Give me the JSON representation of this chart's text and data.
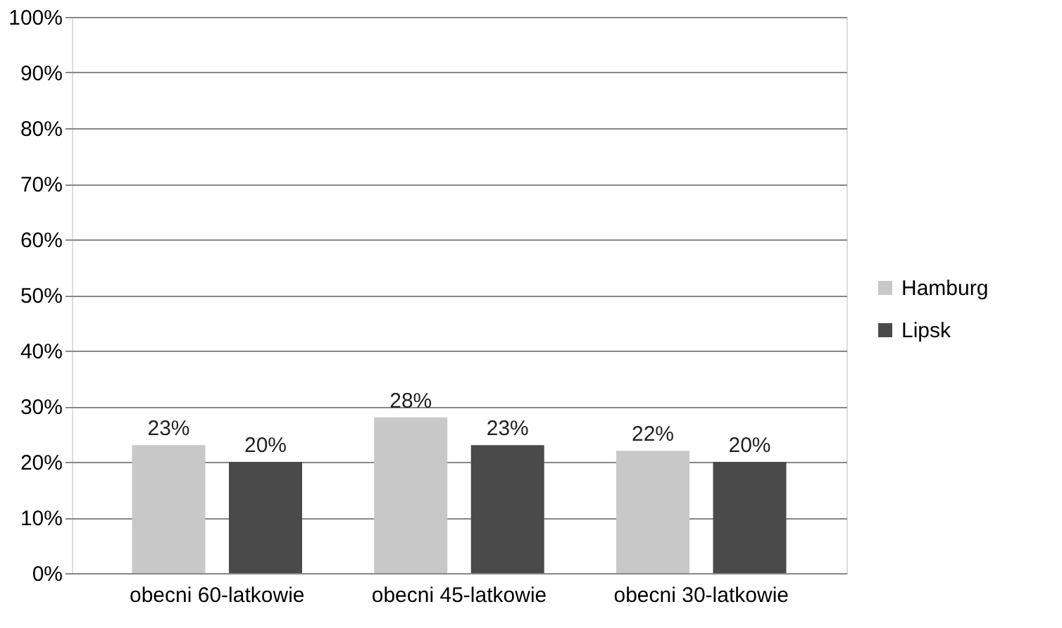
{
  "chart_data": {
    "type": "bar",
    "categories": [
      "obecni 60-latkowie",
      "obecni 45-latkowie",
      "obecni 30-latkowie"
    ],
    "series": [
      {
        "name": "Hamburg",
        "color": "#c8c8c8",
        "values": [
          23,
          28,
          22
        ],
        "value_labels": [
          "23%",
          "28%",
          "22%"
        ]
      },
      {
        "name": "Lipsk",
        "color": "#4a4a4a",
        "values": [
          20,
          23,
          20
        ],
        "value_labels": [
          "20%",
          "23%",
          "20%"
        ]
      }
    ],
    "ylim": [
      0,
      100
    ],
    "yticks": [
      {
        "value": 0,
        "label": "0%"
      },
      {
        "value": 10,
        "label": "10%"
      },
      {
        "value": 20,
        "label": "20%"
      },
      {
        "value": 30,
        "label": "30%"
      },
      {
        "value": 40,
        "label": "40%"
      },
      {
        "value": 50,
        "label": "50%"
      },
      {
        "value": 60,
        "label": "60%"
      },
      {
        "value": 70,
        "label": "70%"
      },
      {
        "value": 80,
        "label": "80%"
      },
      {
        "value": 90,
        "label": "90%"
      },
      {
        "value": 100,
        "label": "100%"
      }
    ],
    "grid": "y",
    "legend": "right"
  }
}
